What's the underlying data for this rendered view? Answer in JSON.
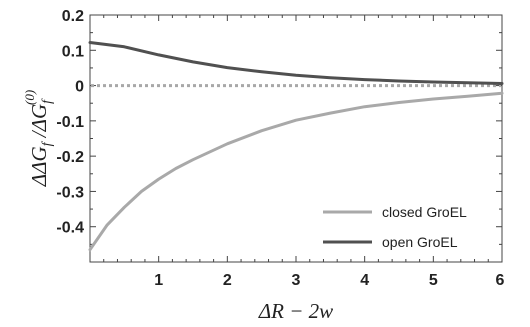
{
  "chart_data": {
    "type": "line",
    "xlabel": "ΔR − 2w",
    "ylabel": "ΔΔG_f / ΔG_f^(0)",
    "xlim": [
      0,
      6
    ],
    "ylim": [
      -0.5,
      0.2
    ],
    "x_ticks": [
      "1",
      "2",
      "3",
      "4",
      "5",
      "6"
    ],
    "y_ticks": [
      "0.2",
      "0.1",
      "0",
      "-0.1",
      "-0.2",
      "-0.3",
      "-0.4"
    ],
    "x_tick_values": [
      1,
      2,
      3,
      4,
      5,
      6
    ],
    "y_tick_values": [
      0.2,
      0.1,
      0,
      -0.1,
      -0.2,
      -0.3,
      -0.4
    ],
    "grid": false,
    "legend_position": "bottom-right",
    "reference_line": {
      "y": 0,
      "style": "dotted",
      "color": "#a8a8a8"
    },
    "series": [
      {
        "name": "closed GroEL",
        "color": "#a9a9a9",
        "x": [
          0,
          0.25,
          0.5,
          0.75,
          1,
          1.25,
          1.5,
          2,
          2.5,
          3,
          3.5,
          4,
          4.5,
          5,
          5.5,
          6
        ],
        "y": [
          -0.465,
          -0.395,
          -0.345,
          -0.3,
          -0.265,
          -0.235,
          -0.21,
          -0.165,
          -0.128,
          -0.098,
          -0.078,
          -0.06,
          -0.048,
          -0.038,
          -0.03,
          -0.022
        ]
      },
      {
        "name": "open GroEL",
        "color": "#505050",
        "x": [
          0,
          0.5,
          1,
          1.5,
          2,
          2.5,
          3,
          3.5,
          4,
          4.5,
          5,
          5.5,
          6
        ],
        "y": [
          0.122,
          0.11,
          0.087,
          0.067,
          0.051,
          0.039,
          0.029,
          0.022,
          0.017,
          0.013,
          0.01,
          0.008,
          0.006
        ]
      }
    ]
  }
}
